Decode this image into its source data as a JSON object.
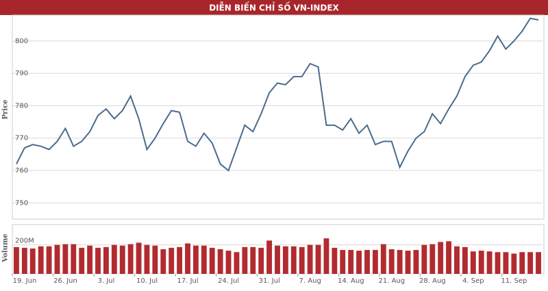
{
  "chart_data": {
    "type": "line",
    "title": "DIỄN BIẾN CHỈ SỐ VN-INDEX",
    "categories": [
      "19. Jun",
      null,
      null,
      null,
      null,
      "26. Jun",
      null,
      null,
      null,
      null,
      "3. Jul",
      null,
      null,
      null,
      null,
      "10. Jul",
      null,
      null,
      null,
      null,
      "17. Jul",
      null,
      null,
      null,
      null,
      "24. Jul",
      null,
      null,
      null,
      null,
      "31. Jul",
      null,
      null,
      null,
      null,
      "7. Aug",
      null,
      null,
      null,
      null,
      "14. Aug",
      null,
      null,
      null,
      null,
      "21. Aug",
      null,
      null,
      null,
      null,
      "28. Aug",
      null,
      null,
      null,
      null,
      "4. Sep",
      null,
      null,
      null,
      null,
      "11. Sep",
      null,
      null,
      null,
      null
    ],
    "series": [
      {
        "name": "Price",
        "color": "#4a6a8c",
        "values": [
          762,
          767,
          768,
          767.5,
          766.5,
          769,
          773,
          767.5,
          769,
          772,
          777,
          779,
          776,
          778.5,
          783,
          776,
          766.5,
          770,
          774.5,
          778.5,
          778,
          769,
          767.5,
          771.5,
          768.5,
          762,
          760,
          767,
          774,
          772,
          777.5,
          784,
          787,
          786.5,
          789,
          789,
          793,
          792,
          774,
          774,
          772.5,
          776,
          771.5,
          774,
          768,
          769,
          769,
          761,
          766,
          770,
          772,
          777.5,
          774.5,
          779,
          783,
          789,
          792.5,
          793.5,
          797,
          801.5,
          797.5,
          800,
          803,
          807,
          806.5
        ]
      },
      {
        "name": "Volume",
        "color": "#b22b2f",
        "axis": "y2",
        "values": [
          185,
          180,
          175,
          190,
          190,
          200,
          205,
          205,
          180,
          195,
          180,
          185,
          200,
          195,
          205,
          215,
          200,
          195,
          170,
          180,
          185,
          210,
          195,
          195,
          180,
          170,
          160,
          150,
          185,
          185,
          180,
          230,
          195,
          190,
          190,
          185,
          200,
          200,
          245,
          180,
          165,
          165,
          160,
          165,
          165,
          205,
          170,
          165,
          160,
          165,
          200,
          205,
          220,
          225,
          190,
          185,
          155,
          160,
          155,
          150,
          150,
          140,
          150,
          150,
          150
        ]
      }
    ],
    "ylabel": "Price",
    "y2label": "Volume",
    "ylim": [
      745,
      808
    ],
    "yticks": [
      750,
      760,
      770,
      780,
      790,
      800
    ],
    "y2lim": [
      0,
      340
    ],
    "y2ticks": [
      0,
      {
        "value": 200,
        "label": "200M"
      }
    ],
    "grid": true
  }
}
